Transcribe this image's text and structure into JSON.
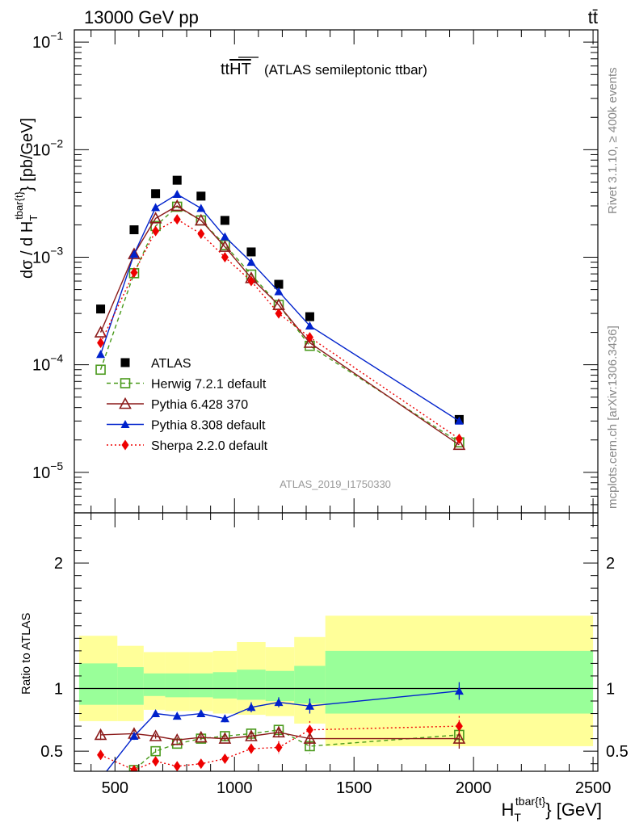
{
  "header": {
    "left": "13000 GeV pp",
    "right": "tt̄"
  },
  "side_labels": {
    "rivet": "Rivet 3.1.10, ≥ 400k events",
    "mcplots": "mcplots.cern.ch [arXiv:1306.3436]"
  },
  "chart_data": [
    {
      "type": "scatter",
      "title_main": "tt",
      "title_overline": "HT",
      "title_rest": "(ATLAS semileptonic ttbar)",
      "watermark": "ATLAS_2019_I1750330",
      "ylabel": {
        "pre": "dσ / d H",
        "sup": "tbar{t}",
        "sub": "T",
        "post": "} [pb/GeV]"
      },
      "yscale": "log",
      "ylim": [
        4.2e-06,
        0.13
      ],
      "ytick_labels": [
        {
          "base": "10",
          "exp": "−1"
        },
        {
          "base": "10",
          "exp": "−2"
        },
        {
          "base": "10",
          "exp": "−3"
        },
        {
          "base": "10",
          "exp": "−4"
        },
        {
          "base": "10",
          "exp": "−5"
        }
      ],
      "x": [
        440,
        580,
        670,
        760,
        860,
        960,
        1070,
        1185,
        1315,
        1940
      ],
      "series": [
        {
          "name": "ATLAS",
          "color": "#000000",
          "marker": "square-filled",
          "line": "none",
          "values": [
            0.00033,
            0.0018,
            0.0039,
            0.0052,
            0.0037,
            0.0022,
            0.00112,
            0.00056,
            0.00028,
            3.1e-05
          ]
        },
        {
          "name": "Herwig 7.2.1 default",
          "color": "#4a9a1c",
          "marker": "square-open",
          "line": "dashed",
          "values": [
            9e-05,
            0.00071,
            0.00195,
            0.00295,
            0.0022,
            0.0013,
            0.00069,
            0.00036,
            0.00015,
            1.9e-05
          ]
        },
        {
          "name": "Pythia 6.428 370",
          "color": "#8b1a1a",
          "marker": "triangle-open",
          "line": "solid",
          "values": [
            0.0002,
            0.00107,
            0.0023,
            0.003,
            0.0022,
            0.00125,
            0.00064,
            0.00036,
            0.00016,
            1.8e-05
          ]
        },
        {
          "name": "Pythia 8.308 default",
          "color": "#0022cc",
          "marker": "triangle-filled",
          "line": "solid",
          "values": [
            0.000125,
            0.00107,
            0.0029,
            0.00385,
            0.00285,
            0.00155,
            0.0009,
            0.00048,
            0.00023,
            3e-05
          ]
        },
        {
          "name": "Sherpa 2.2.0 default",
          "color": "#ee0000",
          "marker": "diamond-filled",
          "line": "dotted",
          "values": [
            0.00016,
            0.00072,
            0.00175,
            0.00225,
            0.00165,
            0.001,
            0.0006,
            0.0003,
            0.00018,
            2.05e-05
          ]
        }
      ]
    },
    {
      "type": "scatter",
      "xlabel": {
        "pre": "H",
        "sup": "tbar{t}",
        "sub": "T",
        "post": "} [GeV]"
      },
      "ylabel": "Ratio to ATLAS",
      "xlim": [
        330,
        2520
      ],
      "ylim": [
        0.34,
        2.4
      ],
      "xtick_labels": [
        "500",
        "1000",
        "1500",
        "2000",
        "2500"
      ],
      "xtick_values": [
        500,
        1000,
        1500,
        2000,
        2500
      ],
      "ytick_labels": [
        "0.5",
        "1",
        "2"
      ],
      "ytick_values": [
        0.5,
        1,
        2
      ],
      "band_color_stat": "#99ff99",
      "band_color_total": "#ffff99",
      "bands": [
        {
          "x0": 350,
          "x1": 510,
          "total": [
            0.74,
            1.42
          ],
          "stat": [
            0.87,
            1.2
          ]
        },
        {
          "x0": 510,
          "x1": 620,
          "total": [
            0.74,
            1.34
          ],
          "stat": [
            0.87,
            1.17
          ]
        },
        {
          "x0": 620,
          "x1": 710,
          "total": [
            0.83,
            1.29
          ],
          "stat": [
            0.94,
            1.12
          ]
        },
        {
          "x0": 710,
          "x1": 810,
          "total": [
            0.82,
            1.29
          ],
          "stat": [
            0.93,
            1.12
          ]
        },
        {
          "x0": 810,
          "x1": 910,
          "total": [
            0.82,
            1.29
          ],
          "stat": [
            0.93,
            1.12
          ]
        },
        {
          "x0": 910,
          "x1": 1010,
          "total": [
            0.8,
            1.3
          ],
          "stat": [
            0.92,
            1.13
          ]
        },
        {
          "x0": 1010,
          "x1": 1130,
          "total": [
            0.79,
            1.37
          ],
          "stat": [
            0.91,
            1.15
          ]
        },
        {
          "x0": 1130,
          "x1": 1250,
          "total": [
            0.78,
            1.33
          ],
          "stat": [
            0.9,
            1.14
          ]
        },
        {
          "x0": 1250,
          "x1": 1380,
          "total": [
            0.72,
            1.41
          ],
          "stat": [
            0.88,
            1.18
          ]
        },
        {
          "x0": 1380,
          "x1": 2500,
          "total": [
            0.54,
            1.58
          ],
          "stat": [
            0.8,
            1.3
          ]
        }
      ],
      "x": [
        440,
        580,
        670,
        760,
        860,
        960,
        1070,
        1185,
        1315,
        1940
      ],
      "series": [
        {
          "name": "Herwig 7.2.1 default",
          "color": "#4a9a1c",
          "marker": "square-open",
          "line": "dashed",
          "values": [
            0.28,
            0.35,
            0.5,
            0.56,
            0.6,
            0.62,
            0.64,
            0.67,
            0.54,
            0.63
          ],
          "errors": [
            0.02,
            0.02,
            0.02,
            0.02,
            0.02,
            0.03,
            0.03,
            0.04,
            0.06,
            0.08
          ]
        },
        {
          "name": "Pythia 6.428 370",
          "color": "#8b1a1a",
          "marker": "triangle-open",
          "line": "solid",
          "values": [
            0.63,
            0.64,
            0.62,
            0.59,
            0.61,
            0.6,
            0.62,
            0.65,
            0.6,
            0.6
          ],
          "errors": [
            0.04,
            0.03,
            0.02,
            0.02,
            0.02,
            0.02,
            0.03,
            0.04,
            0.06,
            0.08
          ]
        },
        {
          "name": "Pythia 8.308 default",
          "color": "#0022cc",
          "marker": "triangle-filled",
          "line": "solid",
          "values": [
            0.28,
            0.62,
            0.8,
            0.78,
            0.8,
            0.76,
            0.85,
            0.89,
            0.86,
            0.98
          ],
          "errors": [
            0.03,
            0.03,
            0.02,
            0.02,
            0.02,
            0.03,
            0.04,
            0.04,
            0.06,
            0.07
          ]
        },
        {
          "name": "Sherpa 2.2.0 default",
          "color": "#ee0000",
          "marker": "diamond-filled",
          "line": "dotted",
          "values": [
            0.47,
            0.35,
            0.42,
            0.38,
            0.4,
            0.44,
            0.52,
            0.53,
            0.67,
            0.7
          ],
          "errors": [
            0.04,
            0.03,
            0.03,
            0.02,
            0.02,
            0.03,
            0.04,
            0.05,
            0.07,
            0.08
          ]
        }
      ]
    }
  ]
}
